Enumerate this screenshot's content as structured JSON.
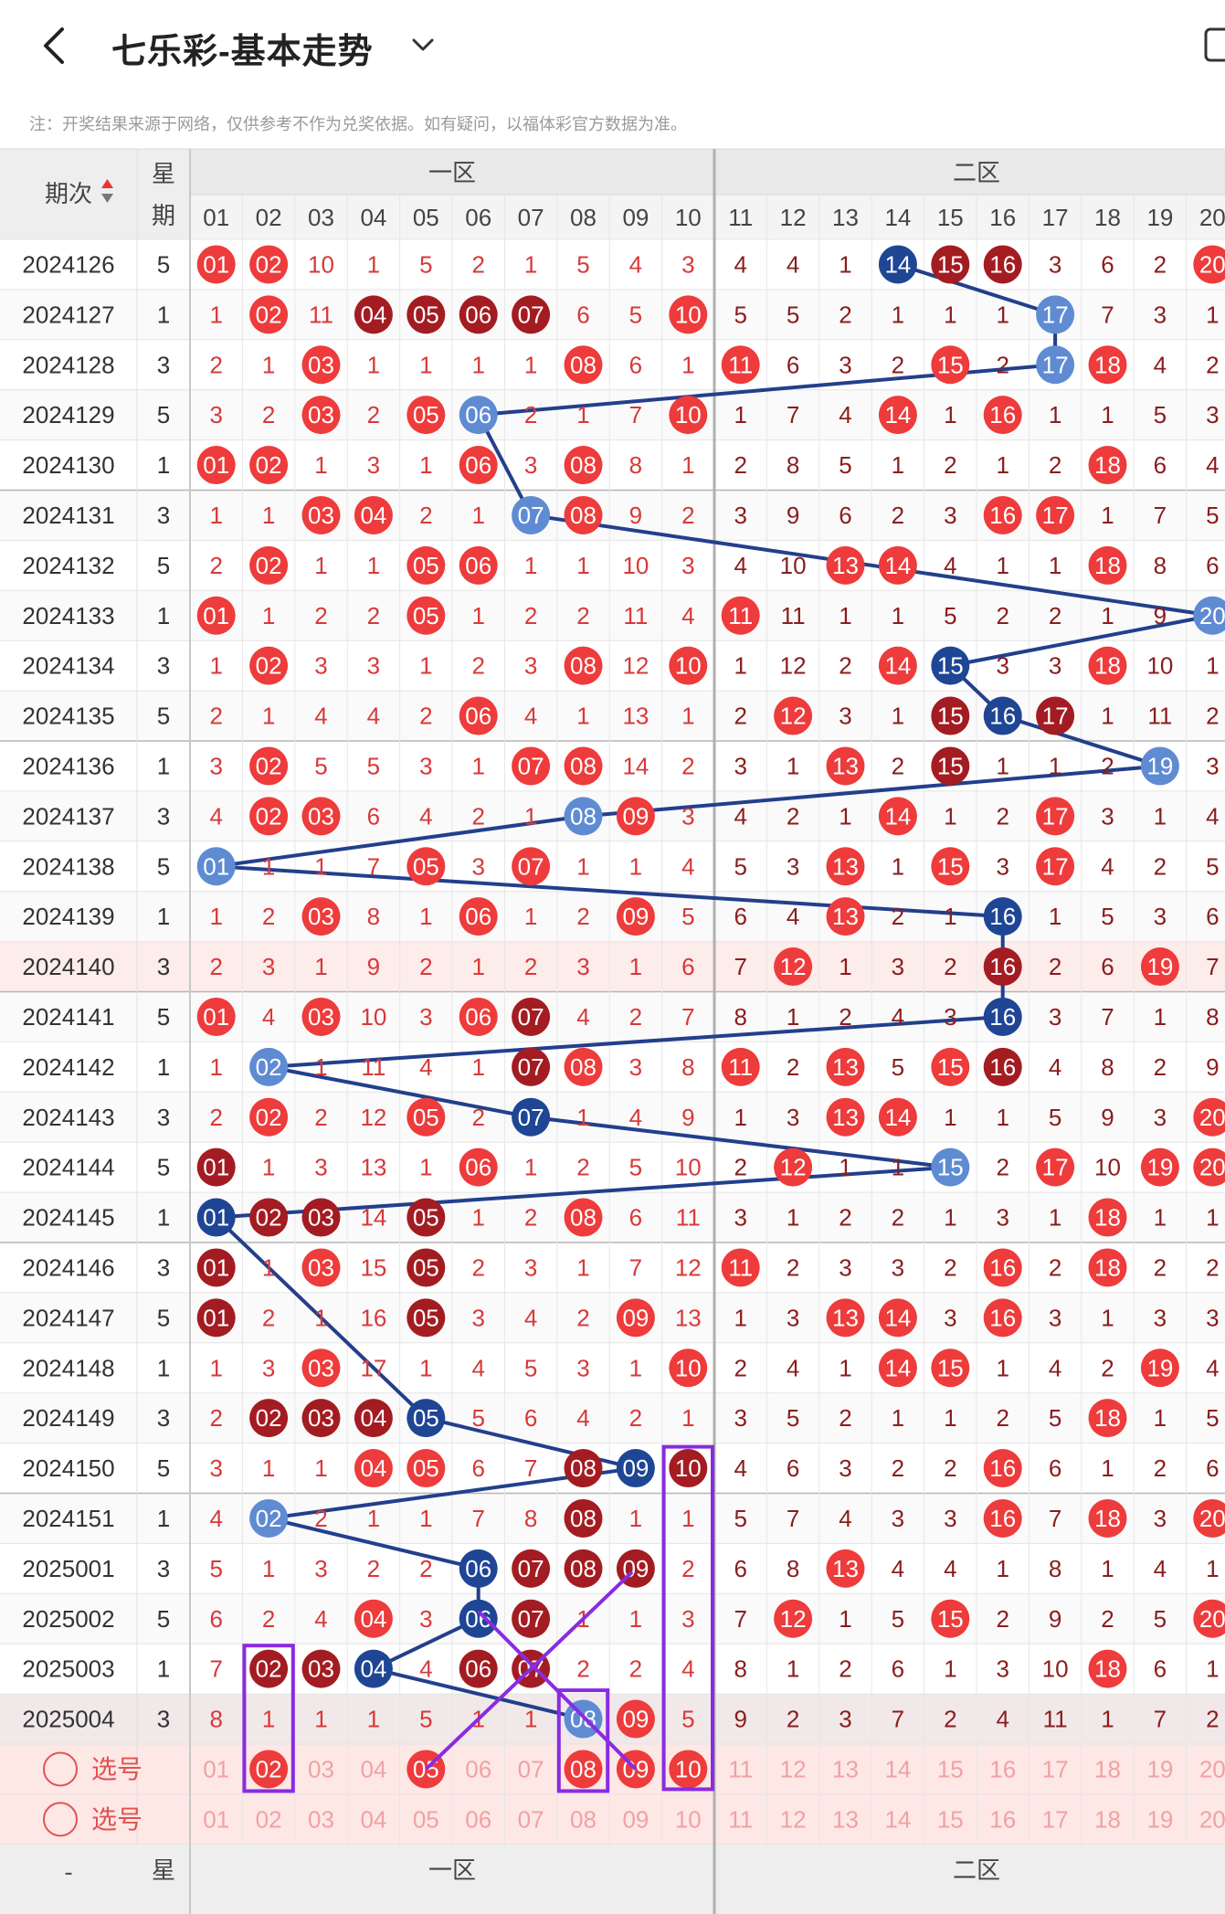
{
  "header": {
    "title": "七乐彩-基本走势",
    "back_icon": "chevron-left-icon",
    "dropdown_icon": "chevron-down-icon",
    "device_icon": "phone-icon"
  },
  "notice": "注：开奖结果来源于网络，仅供参考不作为兑奖依据。如有疑问，以福体彩官方数据为准。",
  "table": {
    "issue_header": "期次",
    "week_header": [
      "星",
      "期"
    ],
    "zone_labels": [
      "一区",
      "二区"
    ],
    "number_headers": [
      "01",
      "02",
      "03",
      "04",
      "05",
      "06",
      "07",
      "08",
      "09",
      "10",
      "11",
      "12",
      "13",
      "14",
      "15",
      "16",
      "17",
      "18",
      "19",
      "20"
    ],
    "rows": [
      {
        "issue": "2024126",
        "week": "5",
        "cells": [
          "01",
          "02",
          "10",
          "1",
          "5",
          "2",
          "1",
          "5",
          "4",
          "3",
          "4",
          "4",
          "1",
          "14",
          "15",
          "16",
          "3",
          "6",
          "2",
          "20"
        ],
        "hits": {
          "1": "r",
          "2": "r",
          "14": "b",
          "15": "d",
          "16": "d",
          "20": "r"
        }
      },
      {
        "issue": "2024127",
        "week": "1",
        "cells": [
          "1",
          "02",
          "11",
          "04",
          "05",
          "06",
          "07",
          "6",
          "5",
          "10",
          "5",
          "5",
          "2",
          "1",
          "1",
          "1",
          "17",
          "7",
          "3",
          "1"
        ],
        "hits": {
          "2": "r",
          "4": "d",
          "5": "d",
          "6": "d",
          "7": "d",
          "10": "r",
          "17": "lb"
        }
      },
      {
        "issue": "2024128",
        "week": "3",
        "cells": [
          "2",
          "1",
          "03",
          "1",
          "1",
          "1",
          "1",
          "08",
          "6",
          "1",
          "11",
          "6",
          "3",
          "2",
          "15",
          "2",
          "17",
          "18",
          "4",
          "2"
        ],
        "hits": {
          "3": "r",
          "8": "r",
          "11": "r",
          "15": "r",
          "17": "lb",
          "18": "r"
        }
      },
      {
        "issue": "2024129",
        "week": "5",
        "cells": [
          "3",
          "2",
          "03",
          "2",
          "05",
          "06",
          "2",
          "1",
          "7",
          "10",
          "1",
          "7",
          "4",
          "14",
          "1",
          "16",
          "1",
          "1",
          "5",
          "3"
        ],
        "hits": {
          "3": "r",
          "5": "r",
          "6": "lb",
          "10": "r",
          "14": "r",
          "16": "r"
        }
      },
      {
        "issue": "2024130",
        "week": "1",
        "cells": [
          "01",
          "02",
          "1",
          "3",
          "1",
          "06",
          "3",
          "08",
          "8",
          "1",
          "2",
          "8",
          "5",
          "1",
          "2",
          "1",
          "2",
          "18",
          "6",
          "4"
        ],
        "hits": {
          "1": "r",
          "2": "r",
          "6": "r",
          "8": "r",
          "18": "r"
        }
      },
      {
        "issue": "2024131",
        "week": "3",
        "cells": [
          "1",
          "1",
          "03",
          "04",
          "2",
          "1",
          "07",
          "08",
          "9",
          "2",
          "3",
          "9",
          "6",
          "2",
          "3",
          "16",
          "17",
          "1",
          "7",
          "5"
        ],
        "hits": {
          "3": "r",
          "4": "r",
          "7": "lb",
          "8": "r",
          "16": "r",
          "17": "r"
        }
      },
      {
        "issue": "2024132",
        "week": "5",
        "cells": [
          "2",
          "02",
          "1",
          "1",
          "05",
          "06",
          "1",
          "1",
          "10",
          "3",
          "4",
          "10",
          "13",
          "14",
          "4",
          "1",
          "1",
          "18",
          "8",
          "6"
        ],
        "hits": {
          "2": "r",
          "5": "r",
          "6": "r",
          "13": "r",
          "14": "r",
          "18": "r"
        }
      },
      {
        "issue": "2024133",
        "week": "1",
        "cells": [
          "01",
          "1",
          "2",
          "2",
          "05",
          "1",
          "2",
          "2",
          "11",
          "4",
          "11",
          "11",
          "1",
          "1",
          "5",
          "2",
          "2",
          "1",
          "9",
          "20"
        ],
        "hits": {
          "1": "r",
          "5": "r",
          "11": "r",
          "20": "lb"
        }
      },
      {
        "issue": "2024134",
        "week": "3",
        "cells": [
          "1",
          "02",
          "3",
          "3",
          "1",
          "2",
          "3",
          "08",
          "12",
          "10",
          "1",
          "12",
          "2",
          "14",
          "15",
          "3",
          "3",
          "18",
          "10",
          "1"
        ],
        "hits": {
          "2": "r",
          "8": "r",
          "10": "r",
          "14": "r",
          "15": "b",
          "18": "r"
        }
      },
      {
        "issue": "2024135",
        "week": "5",
        "cells": [
          "2",
          "1",
          "4",
          "4",
          "2",
          "06",
          "4",
          "1",
          "13",
          "1",
          "2",
          "12",
          "3",
          "1",
          "15",
          "16",
          "17",
          "1",
          "11",
          "2"
        ],
        "hits": {
          "6": "r",
          "12": "r",
          "15": "d",
          "16": "b",
          "17": "d"
        }
      },
      {
        "issue": "2024136",
        "week": "1",
        "cells": [
          "3",
          "02",
          "5",
          "5",
          "3",
          "1",
          "07",
          "08",
          "14",
          "2",
          "3",
          "1",
          "13",
          "2",
          "15",
          "1",
          "1",
          "2",
          "19",
          "3"
        ],
        "hits": {
          "2": "r",
          "7": "r",
          "8": "r",
          "13": "r",
          "15": "d",
          "19": "lb"
        }
      },
      {
        "issue": "2024137",
        "week": "3",
        "cells": [
          "4",
          "02",
          "03",
          "6",
          "4",
          "2",
          "1",
          "08",
          "09",
          "3",
          "4",
          "2",
          "1",
          "14",
          "1",
          "2",
          "17",
          "3",
          "1",
          "4"
        ],
        "hits": {
          "2": "r",
          "3": "r",
          "8": "lb",
          "9": "r",
          "14": "r",
          "17": "r"
        }
      },
      {
        "issue": "2024138",
        "week": "5",
        "cells": [
          "01",
          "1",
          "1",
          "7",
          "05",
          "3",
          "07",
          "1",
          "1",
          "4",
          "5",
          "3",
          "13",
          "1",
          "15",
          "3",
          "17",
          "4",
          "2",
          "5"
        ],
        "hits": {
          "1": "lb",
          "5": "r",
          "7": "r",
          "13": "r",
          "15": "r",
          "17": "r"
        }
      },
      {
        "issue": "2024139",
        "week": "1",
        "cells": [
          "1",
          "2",
          "03",
          "8",
          "1",
          "06",
          "1",
          "2",
          "09",
          "5",
          "6",
          "4",
          "13",
          "2",
          "1",
          "16",
          "1",
          "5",
          "3",
          "6"
        ],
        "hits": {
          "3": "r",
          "6": "r",
          "9": "r",
          "13": "r",
          "16": "b"
        }
      },
      {
        "issue": "2024140",
        "week": "3",
        "cells": [
          "2",
          "3",
          "1",
          "9",
          "2",
          "1",
          "2",
          "3",
          "1",
          "6",
          "7",
          "12",
          "1",
          "3",
          "2",
          "16",
          "2",
          "6",
          "19",
          "7"
        ],
        "hits": {
          "12": "r",
          "16": "d",
          "19": "r"
        }
      },
      {
        "issue": "2024141",
        "week": "5",
        "cells": [
          "01",
          "4",
          "03",
          "10",
          "3",
          "06",
          "07",
          "4",
          "2",
          "7",
          "8",
          "1",
          "2",
          "4",
          "3",
          "16",
          "3",
          "7",
          "1",
          "8"
        ],
        "hits": {
          "1": "r",
          "3": "r",
          "6": "r",
          "7": "d",
          "16": "b"
        }
      },
      {
        "issue": "2024142",
        "week": "1",
        "cells": [
          "1",
          "02",
          "1",
          "11",
          "4",
          "1",
          "07",
          "08",
          "3",
          "8",
          "11",
          "2",
          "13",
          "5",
          "15",
          "16",
          "4",
          "8",
          "2",
          "9"
        ],
        "hits": {
          "2": "lb",
          "7": "d",
          "8": "r",
          "11": "r",
          "13": "r",
          "15": "r",
          "16": "d"
        }
      },
      {
        "issue": "2024143",
        "week": "3",
        "cells": [
          "2",
          "02",
          "2",
          "12",
          "05",
          "2",
          "07",
          "1",
          "4",
          "9",
          "1",
          "3",
          "13",
          "14",
          "1",
          "1",
          "5",
          "9",
          "3",
          "20"
        ],
        "hits": {
          "2": "r",
          "5": "r",
          "7": "b",
          "13": "r",
          "14": "r",
          "20": "r"
        }
      },
      {
        "issue": "2024144",
        "week": "5",
        "cells": [
          "01",
          "1",
          "3",
          "13",
          "1",
          "06",
          "1",
          "2",
          "5",
          "10",
          "2",
          "12",
          "1",
          "1",
          "15",
          "2",
          "17",
          "10",
          "19",
          "20"
        ],
        "hits": {
          "1": "d",
          "6": "r",
          "12": "r",
          "15": "lb",
          "17": "r",
          "19": "r",
          "20": "r"
        }
      },
      {
        "issue": "2024145",
        "week": "1",
        "cells": [
          "01",
          "02",
          "03",
          "14",
          "05",
          "1",
          "2",
          "08",
          "6",
          "11",
          "3",
          "1",
          "2",
          "2",
          "1",
          "3",
          "1",
          "18",
          "1",
          "1"
        ],
        "hits": {
          "1": "b",
          "2": "d",
          "3": "d",
          "5": "d",
          "8": "r",
          "18": "r"
        }
      },
      {
        "issue": "2024146",
        "week": "3",
        "cells": [
          "01",
          "1",
          "03",
          "15",
          "05",
          "2",
          "3",
          "1",
          "7",
          "12",
          "11",
          "2",
          "3",
          "3",
          "2",
          "16",
          "2",
          "18",
          "2",
          "2"
        ],
        "hits": {
          "1": "d",
          "3": "r",
          "5": "d",
          "11": "r",
          "16": "r",
          "18": "r"
        }
      },
      {
        "issue": "2024147",
        "week": "5",
        "cells": [
          "01",
          "2",
          "1",
          "16",
          "05",
          "3",
          "4",
          "2",
          "09",
          "13",
          "1",
          "3",
          "13",
          "14",
          "3",
          "16",
          "3",
          "1",
          "3",
          "3"
        ],
        "hits": {
          "1": "d",
          "5": "d",
          "9": "r",
          "13": "r",
          "14": "r",
          "16": "r"
        }
      },
      {
        "issue": "2024148",
        "week": "1",
        "cells": [
          "1",
          "3",
          "03",
          "17",
          "1",
          "4",
          "5",
          "3",
          "1",
          "10",
          "2",
          "4",
          "1",
          "14",
          "15",
          "1",
          "4",
          "2",
          "19",
          "4"
        ],
        "hits": {
          "3": "r",
          "10": "r",
          "14": "r",
          "15": "r",
          "19": "r"
        }
      },
      {
        "issue": "2024149",
        "week": "3",
        "cells": [
          "2",
          "02",
          "03",
          "04",
          "05",
          "5",
          "6",
          "4",
          "2",
          "1",
          "3",
          "5",
          "2",
          "1",
          "1",
          "2",
          "5",
          "18",
          "1",
          "5"
        ],
        "hits": {
          "2": "d",
          "3": "d",
          "4": "d",
          "5": "b",
          "18": "r"
        }
      },
      {
        "issue": "2024150",
        "week": "5",
        "cells": [
          "3",
          "1",
          "1",
          "04",
          "05",
          "6",
          "7",
          "08",
          "09",
          "10",
          "4",
          "6",
          "3",
          "2",
          "2",
          "16",
          "6",
          "1",
          "2",
          "6"
        ],
        "hits": {
          "4": "r",
          "5": "r",
          "8": "d",
          "9": "b",
          "10": "d",
          "16": "r"
        }
      },
      {
        "issue": "2024151",
        "week": "1",
        "cells": [
          "4",
          "02",
          "2",
          "1",
          "1",
          "7",
          "8",
          "08",
          "1",
          "1",
          "5",
          "7",
          "4",
          "3",
          "3",
          "16",
          "7",
          "18",
          "3",
          "20"
        ],
        "hits": {
          "2": "lb",
          "8": "d",
          "16": "r",
          "18": "r",
          "20": "r"
        }
      },
      {
        "issue": "2025001",
        "week": "3",
        "cells": [
          "5",
          "1",
          "3",
          "2",
          "2",
          "06",
          "07",
          "08",
          "09",
          "2",
          "6",
          "8",
          "13",
          "4",
          "4",
          "1",
          "8",
          "1",
          "4",
          "1"
        ],
        "hits": {
          "6": "b",
          "7": "d",
          "8": "d",
          "9": "d",
          "13": "r"
        }
      },
      {
        "issue": "2025002",
        "week": "5",
        "cells": [
          "6",
          "2",
          "4",
          "04",
          "3",
          "06",
          "07",
          "1",
          "1",
          "3",
          "7",
          "12",
          "1",
          "5",
          "15",
          "2",
          "9",
          "2",
          "5",
          "20"
        ],
        "hits": {
          "4": "r",
          "6": "b",
          "7": "d",
          "12": "r",
          "15": "r",
          "20": "r"
        }
      },
      {
        "issue": "2025003",
        "week": "1",
        "cells": [
          "7",
          "02",
          "03",
          "04",
          "4",
          "06",
          "07",
          "2",
          "2",
          "4",
          "8",
          "1",
          "2",
          "6",
          "1",
          "3",
          "10",
          "18",
          "6",
          "1"
        ],
        "hits": {
          "2": "d",
          "3": "d",
          "4": "b",
          "6": "d",
          "7": "d",
          "18": "r"
        }
      },
      {
        "issue": "2025004",
        "week": "3",
        "cells": [
          "8",
          "1",
          "1",
          "1",
          "5",
          "1",
          "1",
          "08",
          "09",
          "5",
          "9",
          "2",
          "3",
          "7",
          "2",
          "4",
          "11",
          "1",
          "7",
          "2"
        ],
        "hits": {
          "8": "lb",
          "9": "r"
        }
      }
    ],
    "select_rows": [
      {
        "label": "选号",
        "picked": [
          "02",
          "05",
          "08",
          "09",
          "10"
        ]
      },
      {
        "label": "选号",
        "picked": []
      }
    ]
  },
  "colors": {
    "red_ball": "#ee3b3b",
    "dark_red_ball": "#a31c22",
    "blue_ball": "#1f4595",
    "light_blue_ball": "#5f8bd3",
    "miss_text": "#d33b3b",
    "trend_line": "#233f8c",
    "annotation": "#8a2be2"
  }
}
